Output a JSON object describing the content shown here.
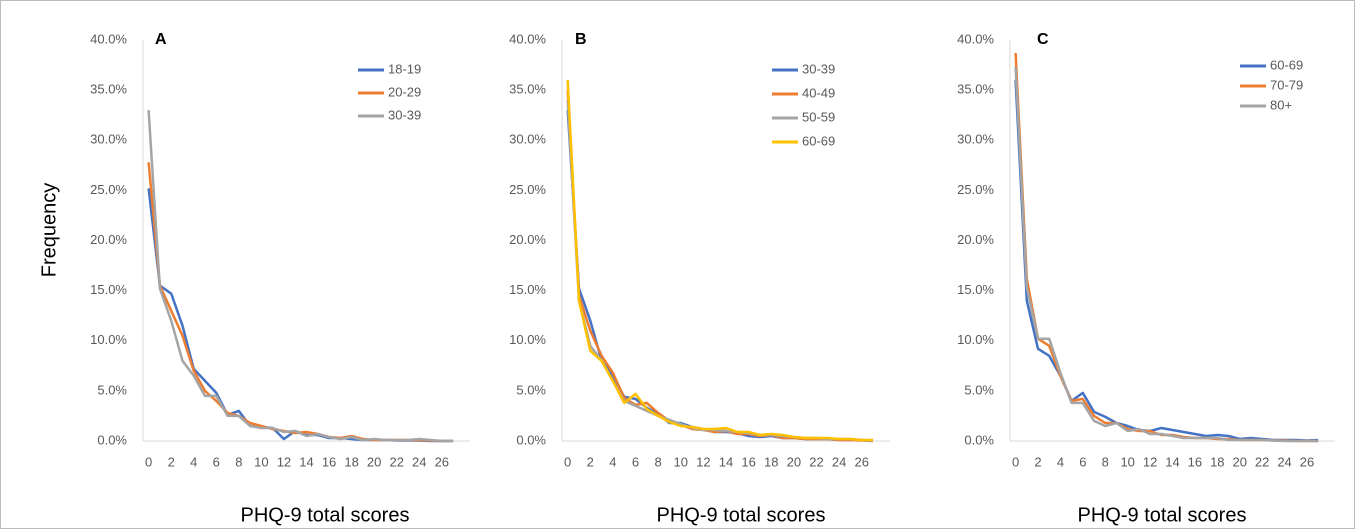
{
  "chart_data": [
    {
      "type": "line",
      "panel_label": "A",
      "y_label": "Frequency",
      "x_label": "PHQ-9 total scores",
      "x": [
        0,
        1,
        2,
        3,
        4,
        5,
        6,
        7,
        8,
        9,
        10,
        11,
        12,
        13,
        14,
        15,
        16,
        17,
        18,
        19,
        20,
        21,
        22,
        23,
        24,
        25,
        26,
        27
      ],
      "xlim": [
        -0.5,
        28.5
      ],
      "xticks": [
        0,
        2,
        4,
        6,
        8,
        10,
        12,
        14,
        16,
        18,
        20,
        22,
        24,
        26
      ],
      "ylim": [
        0,
        40
      ],
      "yticks": [
        {
          "value": 0,
          "label": "0.0%"
        },
        {
          "value": 5,
          "label": "5.0%"
        },
        {
          "value": 10,
          "label": "10.0%"
        },
        {
          "value": 15,
          "label": "15.0%"
        },
        {
          "value": 20,
          "label": "20.0%"
        },
        {
          "value": 25,
          "label": "25.0%"
        },
        {
          "value": 30,
          "label": "30.0%"
        },
        {
          "value": 35,
          "label": "35.0%"
        },
        {
          "value": 40,
          "label": "40.0%"
        }
      ],
      "series": [
        {
          "name": "18-19",
          "color": "#4472c4",
          "values": [
            25.2,
            15.5,
            14.7,
            11.5,
            7.2,
            6.0,
            4.8,
            2.6,
            3.0,
            1.5,
            1.4,
            1.3,
            0.2,
            1.0,
            0.6,
            0.6,
            0.3,
            0.3,
            0.2,
            0.1,
            0.1,
            0.1,
            0.05,
            0.05,
            0.05,
            0,
            0,
            0
          ]
        },
        {
          "name": "20-29",
          "color": "#ed7d31",
          "values": [
            27.8,
            15.5,
            13.0,
            10.5,
            7.0,
            5.0,
            4.0,
            2.8,
            2.5,
            1.8,
            1.5,
            1.2,
            1.0,
            0.8,
            0.9,
            0.7,
            0.4,
            0.3,
            0.5,
            0.2,
            0.1,
            0.1,
            0.1,
            0.1,
            0.1,
            0.05,
            0,
            0
          ]
        },
        {
          "name": "30-39",
          "color": "#a5a5a5",
          "values": [
            33.0,
            15.2,
            12.0,
            8.0,
            6.5,
            4.5,
            4.5,
            2.5,
            2.5,
            1.5,
            1.3,
            1.3,
            0.9,
            1.0,
            0.5,
            0.7,
            0.4,
            0.2,
            0.4,
            0.1,
            0.2,
            0.1,
            0.1,
            0.1,
            0.2,
            0.1,
            0,
            0
          ]
        }
      ]
    },
    {
      "type": "line",
      "panel_label": "B",
      "x_label": "PHQ-9 total scores",
      "x": [
        0,
        1,
        2,
        3,
        4,
        5,
        6,
        7,
        8,
        9,
        10,
        11,
        12,
        13,
        14,
        15,
        16,
        17,
        18,
        19,
        20,
        21,
        22,
        23,
        24,
        25,
        26,
        27
      ],
      "xlim": [
        -0.5,
        28.5
      ],
      "xticks": [
        0,
        2,
        4,
        6,
        8,
        10,
        12,
        14,
        16,
        18,
        20,
        22,
        24,
        26
      ],
      "ylim": [
        0,
        40
      ],
      "yticks": [
        {
          "value": 0,
          "label": "0.0%"
        },
        {
          "value": 5,
          "label": "5.0%"
        },
        {
          "value": 10,
          "label": "10.0%"
        },
        {
          "value": 15,
          "label": "15.0%"
        },
        {
          "value": 20,
          "label": "20.0%"
        },
        {
          "value": 25,
          "label": "25.0%"
        },
        {
          "value": 30,
          "label": "30.0%"
        },
        {
          "value": 35,
          "label": "35.0%"
        },
        {
          "value": 40,
          "label": "40.0%"
        }
      ],
      "series": [
        {
          "name": "30-39",
          "color": "#4472c4",
          "values": [
            33,
            15.2,
            12,
            8.0,
            6.5,
            4.4,
            4.2,
            3.3,
            2.7,
            1.8,
            1.8,
            1.4,
            1.2,
            0.9,
            0.9,
            0.8,
            0.5,
            0.4,
            0.5,
            0.3,
            0.3,
            0.2,
            0.2,
            0.2,
            0.1,
            0.1,
            0.1,
            0
          ]
        },
        {
          "name": "40-49",
          "color": "#ed7d31",
          "values": [
            35,
            14.5,
            11,
            8.5,
            6.8,
            4.3,
            3.6,
            3.8,
            2.8,
            2.0,
            1.6,
            1.2,
            1.1,
            0.9,
            1.0,
            0.7,
            0.7,
            0.5,
            0.6,
            0.3,
            0.3,
            0.2,
            0.2,
            0.2,
            0.1,
            0.1,
            0.05,
            0
          ]
        },
        {
          "name": "50-59",
          "color": "#a5a5a5",
          "values": [
            34,
            14,
            9.5,
            8.0,
            6.0,
            4.0,
            3.5,
            3.0,
            2.5,
            2.1,
            1.7,
            1.3,
            1.1,
            1.1,
            1.0,
            0.9,
            0.8,
            0.6,
            0.6,
            0.5,
            0.4,
            0.3,
            0.3,
            0.2,
            0.2,
            0.2,
            0.1,
            0
          ]
        },
        {
          "name": "60-69",
          "color": "#ffc000",
          "values": [
            36,
            14,
            9.0,
            8.0,
            6.0,
            3.8,
            4.7,
            3.2,
            2.5,
            1.9,
            1.5,
            1.4,
            1.2,
            1.2,
            1.3,
            0.9,
            0.9,
            0.6,
            0.7,
            0.6,
            0.4,
            0.3,
            0.3,
            0.3,
            0.2,
            0.2,
            0.1,
            0.1
          ]
        }
      ]
    },
    {
      "type": "line",
      "panel_label": "C",
      "x_label": "PHQ-9 total scores",
      "x": [
        0,
        1,
        2,
        3,
        4,
        5,
        6,
        7,
        8,
        9,
        10,
        11,
        12,
        13,
        14,
        15,
        16,
        17,
        18,
        19,
        20,
        21,
        22,
        23,
        24,
        25,
        26,
        27
      ],
      "xlim": [
        -0.5,
        28.5
      ],
      "xticks": [
        0,
        2,
        4,
        6,
        8,
        10,
        12,
        14,
        16,
        18,
        20,
        22,
        24,
        26
      ],
      "ylim": [
        0,
        40
      ],
      "yticks": [
        {
          "value": 0,
          "label": "0.0%"
        },
        {
          "value": 5,
          "label": "5.0%"
        },
        {
          "value": 10,
          "label": "10.0%"
        },
        {
          "value": 15,
          "label": "15.0%"
        },
        {
          "value": 20,
          "label": "20.0%"
        },
        {
          "value": 25,
          "label": "25.0%"
        },
        {
          "value": 30,
          "label": "30.0%"
        },
        {
          "value": 35,
          "label": "35.0%"
        },
        {
          "value": 40,
          "label": "40.0%"
        }
      ],
      "series": [
        {
          "name": "60-69",
          "color": "#4472c4",
          "values": [
            36,
            14,
            9.2,
            8.5,
            6.5,
            4.0,
            4.8,
            2.9,
            2.4,
            1.8,
            1.5,
            1.1,
            1.0,
            1.3,
            1.1,
            0.9,
            0.7,
            0.5,
            0.6,
            0.5,
            0.2,
            0.3,
            0.2,
            0.1,
            0.1,
            0.1,
            0.05,
            0.1
          ]
        },
        {
          "name": "70-79",
          "color": "#ed7d31",
          "values": [
            38.7,
            16.2,
            10.2,
            9.5,
            6.5,
            4.0,
            4.2,
            2.5,
            1.8,
            1.8,
            1.2,
            1.0,
            1.0,
            0.6,
            0.6,
            0.4,
            0.3,
            0.3,
            0.2,
            0.2,
            0.1,
            0.1,
            0.1,
            0.05,
            0.05,
            0,
            0,
            0
          ]
        },
        {
          "name": "80+",
          "color": "#a5a5a5",
          "values": [
            37.3,
            15.3,
            10.2,
            10.2,
            6.8,
            3.8,
            3.8,
            2.0,
            1.5,
            1.8,
            1.0,
            1.2,
            0.7,
            0.7,
            0.5,
            0.3,
            0.3,
            0.3,
            0.3,
            0.1,
            0.1,
            0.1,
            0.1,
            0.05,
            0,
            0,
            0,
            0
          ]
        }
      ]
    }
  ]
}
